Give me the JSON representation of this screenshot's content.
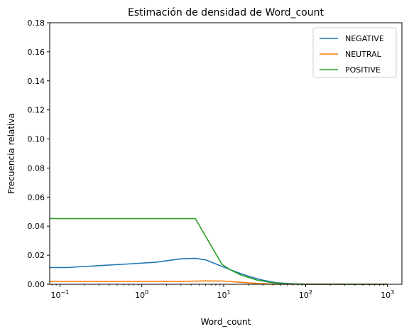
{
  "chart_data": {
    "type": "line",
    "title": "Estimación de densidad de Word_count",
    "xlabel": "Word_count",
    "ylabel": "Frecuencia relativa",
    "xscale": "log",
    "xlim": [
      0.075,
      1500
    ],
    "ylim": [
      0,
      0.18
    ],
    "yticks": [
      0.0,
      0.02,
      0.04,
      0.06,
      0.08,
      0.1,
      0.12,
      0.14,
      0.16,
      0.18
    ],
    "ytick_labels": [
      "0.00",
      "0.02",
      "0.04",
      "0.06",
      "0.08",
      "0.10",
      "0.12",
      "0.14",
      "0.16",
      "0.18"
    ],
    "xticks": [
      0.1,
      1,
      10,
      100,
      1000
    ],
    "xtick_labels": [
      {
        "base": "10",
        "exp": "−1"
      },
      {
        "base": "10",
        "exp": "0"
      },
      {
        "base": "10",
        "exp": "1"
      },
      {
        "base": "10",
        "exp": "2"
      },
      {
        "base": "10",
        "exp": "3"
      }
    ],
    "grid": false,
    "legend_position": "top-right",
    "series": [
      {
        "name": "NEGATIVE",
        "color": "#1f77b4",
        "points": [
          [
            0.075,
            0.0115
          ],
          [
            0.12,
            0.0115
          ],
          [
            0.3,
            0.0128
          ],
          [
            0.7,
            0.014
          ],
          [
            1.5,
            0.0152
          ],
          [
            3.0,
            0.0175
          ],
          [
            4.5,
            0.0178
          ],
          [
            6.0,
            0.0168
          ],
          [
            8.0,
            0.014
          ],
          [
            12.0,
            0.01
          ],
          [
            20.0,
            0.0055
          ],
          [
            30.0,
            0.0028
          ],
          [
            45.0,
            0.001
          ],
          [
            70.0,
            0.0003
          ],
          [
            100.0,
            0.0001
          ],
          [
            300.0,
            0.0
          ],
          [
            1000.0,
            0.0
          ]
        ]
      },
      {
        "name": "NEUTRAL",
        "color": "#ff7f0e",
        "points": [
          [
            0.075,
            0.002
          ],
          [
            1.0,
            0.002
          ],
          [
            3.0,
            0.002
          ],
          [
            6.0,
            0.0023
          ],
          [
            10.0,
            0.0022
          ],
          [
            15.0,
            0.0015
          ],
          [
            25.0,
            0.0006
          ],
          [
            40.0,
            0.0001
          ],
          [
            100.0,
            0.0
          ],
          [
            1000.0,
            0.0
          ]
        ]
      },
      {
        "name": "POSITIVE",
        "color": "#2ca02c",
        "points": [
          [
            0.075,
            0.0452
          ],
          [
            4.5,
            0.0452
          ],
          [
            9.5,
            0.0138
          ],
          [
            12.0,
            0.01
          ],
          [
            16.0,
            0.0065
          ],
          [
            25.0,
            0.003
          ],
          [
            40.0,
            0.001
          ],
          [
            60.0,
            0.0002
          ],
          [
            100.0,
            0.0
          ],
          [
            1000.0,
            0.0
          ]
        ]
      }
    ]
  }
}
